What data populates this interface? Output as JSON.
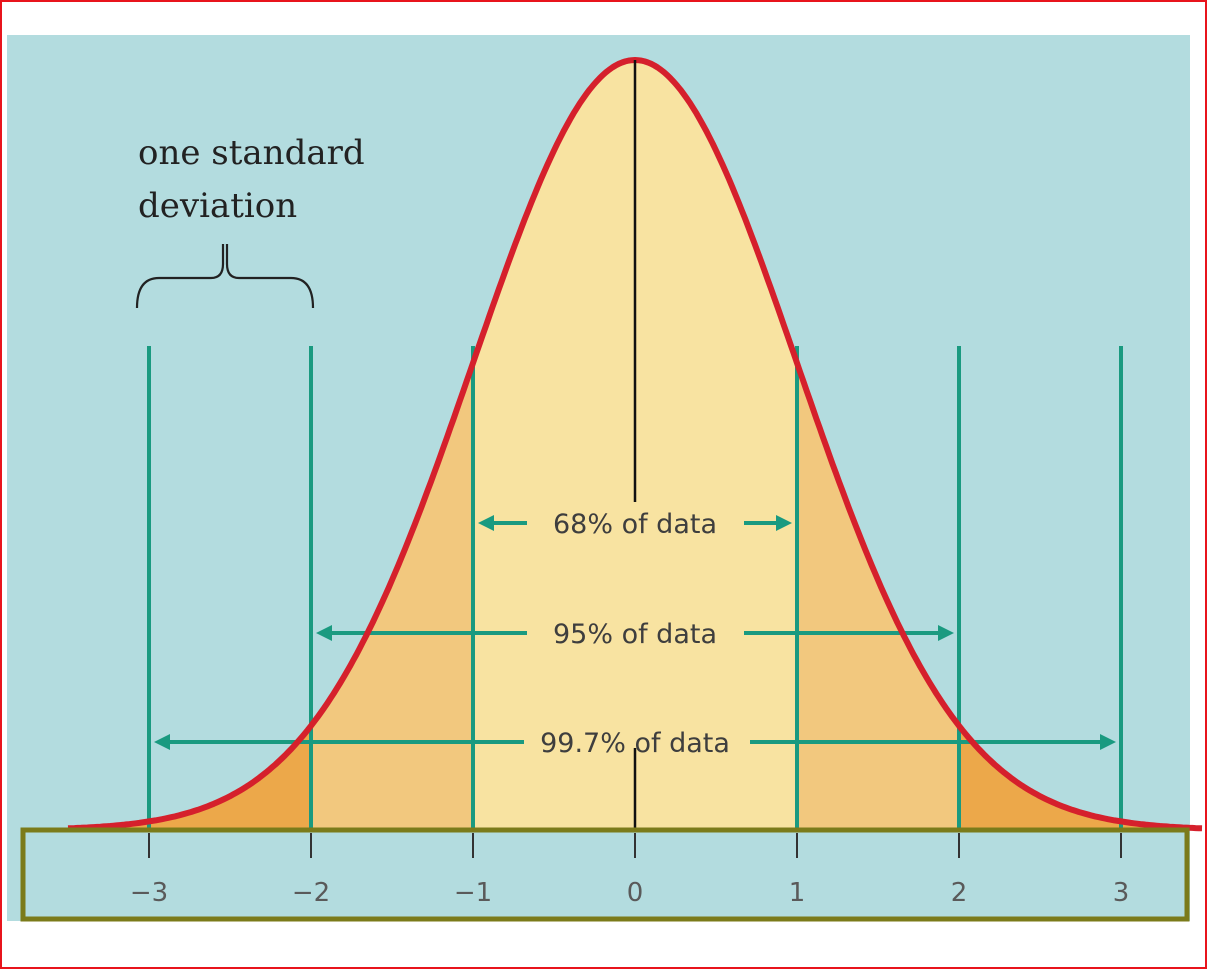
{
  "chart_data": {
    "type": "area",
    "title": "",
    "xlabel": "",
    "ylabel": "",
    "distribution": "normal",
    "mean": 0,
    "sd": 1,
    "xlim": [
      -3.5,
      3.5
    ],
    "ticks": [
      -3,
      -2,
      -1,
      0,
      1,
      2,
      3
    ],
    "tick_labels": [
      "−3",
      "−2",
      "−1",
      "0",
      "1",
      "2",
      "3"
    ],
    "ranges": [
      {
        "label": "68% of data",
        "from": -1,
        "to": 1
      },
      {
        "label": "95% of data",
        "from": -2,
        "to": 2
      },
      {
        "label": "99.7% of data",
        "from": -3,
        "to": 3
      }
    ],
    "annotation": {
      "line1": "one standard",
      "line2": "deviation",
      "from": -3,
      "to": -2
    },
    "grid": false
  },
  "colors": {
    "background": "#b3dcdf",
    "curve": "#d5202c",
    "fill_center": "#f8e3a1",
    "fill_mid": "#f2c87e",
    "fill_tail": "#eca84a",
    "guide_lines": "#1a9a80",
    "axis_border": "#7b7b1a",
    "frame": "#e8141c"
  }
}
